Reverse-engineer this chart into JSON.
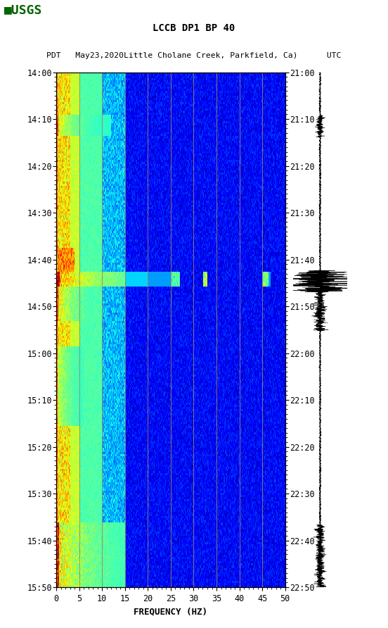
{
  "title_line1": "LCCB DP1 BP 40",
  "title_line2": "PDT   May23,2020Little Cholane Creek, Parkfield, Ca)      UTC",
  "xlabel": "FREQUENCY (HZ)",
  "freq_min": 0,
  "freq_max": 50,
  "freq_ticks": [
    0,
    5,
    10,
    15,
    20,
    25,
    30,
    35,
    40,
    45,
    50
  ],
  "time_ticks_left": [
    "14:00",
    "14:10",
    "14:20",
    "14:30",
    "14:40",
    "14:50",
    "15:00",
    "15:10",
    "15:20",
    "15:30",
    "15:40",
    "15:50"
  ],
  "time_ticks_right": [
    "21:00",
    "21:10",
    "21:20",
    "21:30",
    "21:40",
    "21:50",
    "22:00",
    "22:10",
    "22:20",
    "22:30",
    "22:40",
    "22:50"
  ],
  "n_time": 240,
  "n_freq": 500,
  "vertical_lines_freq": [
    5,
    10,
    15,
    20,
    25,
    30,
    35,
    40,
    45
  ],
  "vline_color": "#A08060",
  "figure_bg": "white",
  "logo_color": "#006400",
  "spectrogram_colormap": "jet"
}
